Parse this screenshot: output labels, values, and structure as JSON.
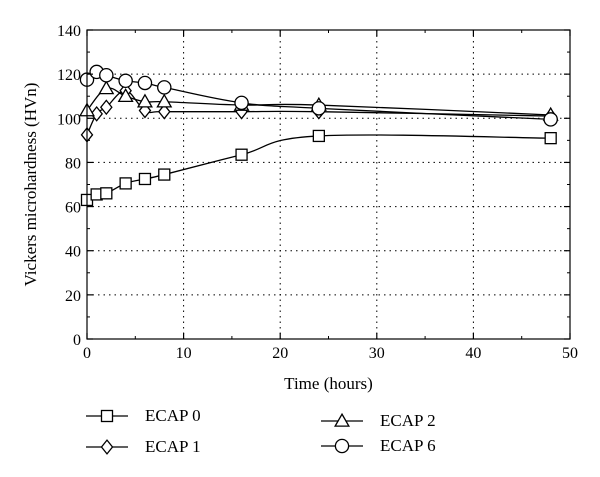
{
  "chart_data": {
    "type": "line",
    "xlabel": "Time (hours)",
    "ylabel": "Vickers microhardness (HVn)",
    "xlim": [
      0,
      50
    ],
    "ylim": [
      0,
      140
    ],
    "xticks": [
      "0",
      "10",
      "20",
      "30",
      "40",
      "50"
    ],
    "yticks": [
      "0",
      "20",
      "40",
      "60",
      "80",
      "100",
      "120",
      "140"
    ],
    "grid": "dotted",
    "legend_position": "bottom",
    "series": [
      {
        "name": "ECAP 0",
        "marker": "square",
        "x": [
          0,
          1,
          2,
          4,
          6,
          8,
          16,
          24,
          48
        ],
        "y": [
          63,
          65.5,
          66,
          70.5,
          72.5,
          74.5,
          83.5,
          92,
          91
        ]
      },
      {
        "name": "ECAP 1",
        "marker": "diamond",
        "x": [
          0,
          1,
          2,
          4,
          6,
          8,
          16,
          24,
          48
        ],
        "y": [
          92.5,
          102,
          105,
          112.5,
          103.5,
          103,
          103,
          103,
          101
        ]
      },
      {
        "name": "ECAP 2",
        "marker": "triangle",
        "x": [
          0,
          2,
          4,
          6,
          8,
          16,
          24,
          48
        ],
        "y": [
          103.5,
          113.5,
          110,
          107.5,
          107.5,
          106,
          106,
          101.5
        ]
      },
      {
        "name": "ECAP 6",
        "marker": "circle",
        "x": [
          0,
          1,
          2,
          4,
          6,
          8,
          16,
          24,
          48
        ],
        "y": [
          117.5,
          121,
          119.5,
          117,
          116,
          114,
          107,
          104.5,
          99.5
        ]
      }
    ]
  }
}
